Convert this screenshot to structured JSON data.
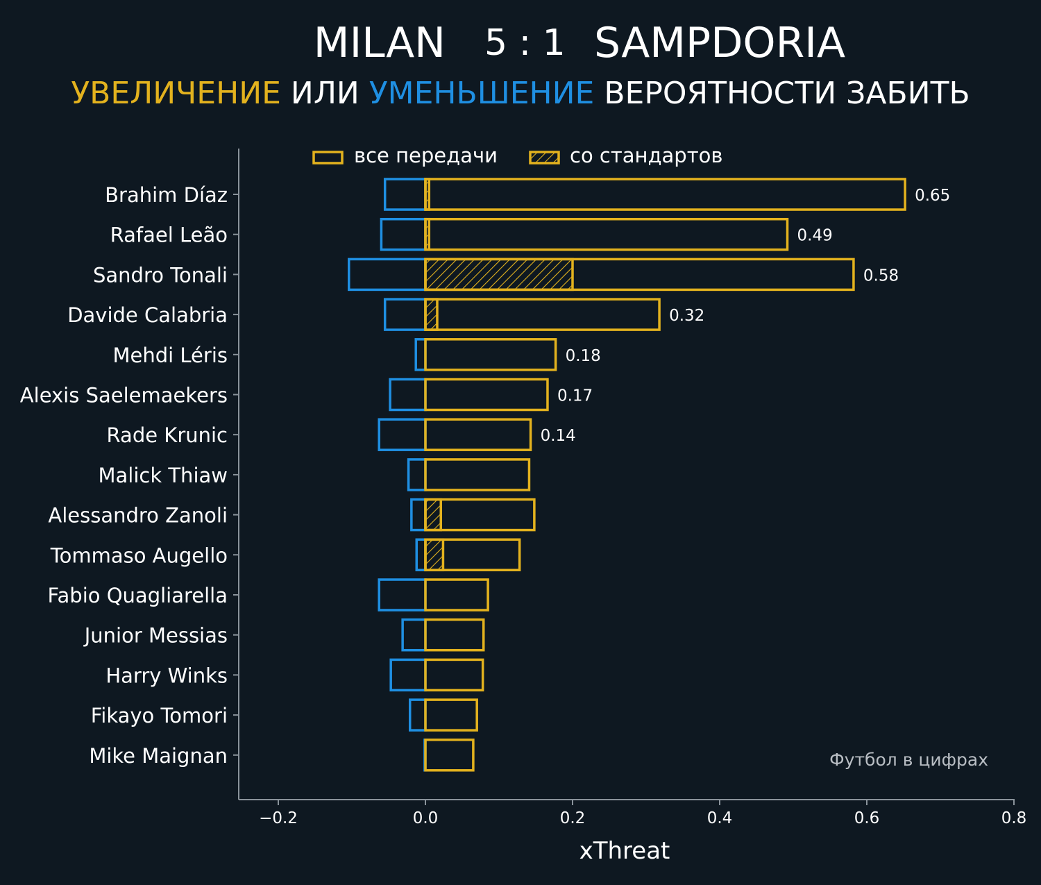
{
  "header": {
    "home_team": "MILAN",
    "score": "5 : 1",
    "away_team": "SAMPDORIA",
    "subtitle_increase": "УВЕЛИЧЕНИЕ",
    "subtitle_or": "ИЛИ",
    "subtitle_decrease": "УМЕНЬШЕНИЕ",
    "subtitle_rest": "ВЕРОЯТНОСТИ ЗАБИТЬ"
  },
  "watermark": "Футбол в цифрах",
  "colors": {
    "background": "#0e1821",
    "increase": "#e3b21e",
    "decrease": "#1f8fe2",
    "axis": "#8a939b",
    "text": "#ffffff"
  },
  "chart_data": {
    "type": "bar",
    "orientation": "horizontal",
    "xlabel": "xThreat",
    "xlim": [
      -0.255,
      0.8
    ],
    "xticks": [
      -0.2,
      0.0,
      0.2,
      0.4,
      0.6,
      0.8
    ],
    "xtick_labels": [
      "−0.2",
      "0.0",
      "0.2",
      "0.4",
      "0.6",
      "0.8"
    ],
    "legend": {
      "position": "top",
      "all_passes": "все передачи",
      "set_pieces": "со стандартов"
    },
    "players": [
      "Brahim Díaz",
      "Rafael Leão",
      "Sandro Tonali",
      "Davide Calabria",
      "Mehdi Léris",
      "Alexis Saelemaekers",
      "Rade Krunic",
      "Malick Thiaw",
      "Alessandro Zanoli",
      "Tommaso Augello",
      "Fabio Quagliarella",
      "Junior Messias",
      "Harry Winks",
      "Fikayo Tomori",
      "Mike Maignan"
    ],
    "series": [
      {
        "name": "increase",
        "values": [
          0.652,
          0.492,
          0.582,
          0.318,
          0.177,
          0.166,
          0.143,
          0.141,
          0.148,
          0.128,
          0.085,
          0.079,
          0.078,
          0.07,
          0.065
        ]
      },
      {
        "name": "decrease",
        "values": [
          -0.055,
          -0.06,
          -0.104,
          -0.055,
          -0.013,
          -0.048,
          -0.063,
          -0.023,
          -0.019,
          -0.012,
          -0.063,
          -0.031,
          -0.047,
          -0.021,
          -0.001
        ]
      },
      {
        "name": "set_pieces",
        "values": [
          0.005,
          0.005,
          0.2,
          0.016,
          0,
          0,
          0,
          0,
          0.021,
          0.024,
          0,
          0,
          0,
          0,
          0
        ]
      }
    ],
    "value_labels": [
      "0.65",
      "0.49",
      "0.58",
      "0.32",
      "0.18",
      "0.17",
      "0.14",
      null,
      null,
      null,
      null,
      null,
      null,
      null,
      null
    ]
  }
}
